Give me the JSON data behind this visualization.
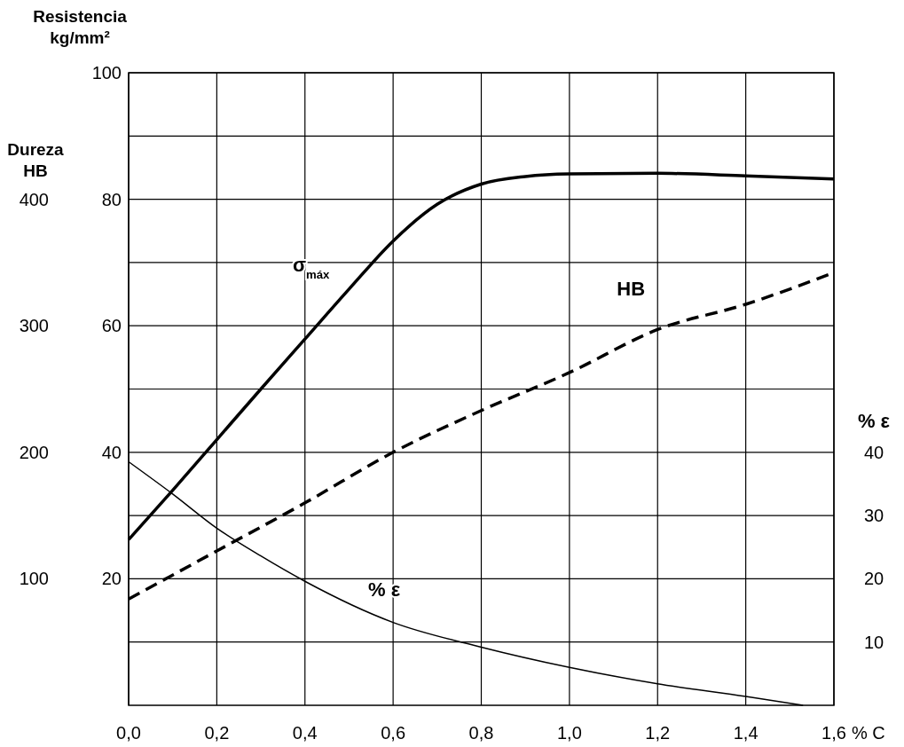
{
  "chart_data": {
    "type": "line",
    "xlabel": "% C",
    "ylabel": "Resistencia kg/mm²",
    "y3label": "Dureza HB",
    "y2label": "% ε",
    "xlim": [
      0,
      1.6
    ],
    "xticks": [
      {
        "value": 0,
        "label": "0,0"
      },
      {
        "value": 0.2,
        "label": "0,2"
      },
      {
        "value": 0.4,
        "label": "0,4"
      },
      {
        "value": 0.6,
        "label": "0,6"
      },
      {
        "value": 0.8,
        "label": "0,8"
      },
      {
        "value": 1.0,
        "label": "1,0"
      },
      {
        "value": 1.2,
        "label": "1,2"
      },
      {
        "value": 1.4,
        "label": "1,4"
      },
      {
        "value": 1.6,
        "label": "1,6"
      }
    ],
    "ylim": [
      0,
      100
    ],
    "yticks": [
      {
        "value": 10,
        "label": null
      },
      20,
      {
        "value": 30,
        "label": null
      },
      40,
      {
        "value": 50,
        "label": null
      },
      60,
      {
        "value": 70,
        "label": null
      },
      80,
      {
        "value": 90,
        "label": null
      },
      100
    ],
    "y3lim": [
      0,
      500
    ],
    "y3ticks": [
      100,
      200,
      300,
      400
    ],
    "y2lim": [
      0,
      100
    ],
    "y2ticks": [
      10,
      20,
      30,
      40
    ],
    "grid": true,
    "series": [
      {
        "name": "σ$_{máx}$",
        "color": "#000000",
        "line_style": "solid",
        "x": [
          0,
          0.1,
          0.2,
          0.3,
          0.4,
          0.5,
          0.6,
          0.7,
          0.8,
          0.9,
          1.0,
          1.2,
          1.4,
          1.6
        ],
        "values": [
          26.2,
          34,
          42,
          50,
          57.9,
          65.8,
          73.4,
          79.2,
          82.4,
          83.6,
          84.0,
          84.1,
          83.7,
          83.2
        ]
      },
      {
        "name": "HB",
        "color": "#000000",
        "line_style": "dashed",
        "axis": "y3",
        "x": [
          0,
          0.2,
          0.4,
          0.6,
          0.8,
          1.0,
          1.2,
          1.4,
          1.6
        ],
        "values": [
          84,
          122,
          160,
          200,
          233,
          263,
          297,
          317,
          342
        ]
      },
      {
        "name": "% ε",
        "color": "#000000",
        "line_style": "solid",
        "axis": "y2",
        "x": [
          0,
          0.1,
          0.2,
          0.3,
          0.4,
          0.6,
          0.8,
          1.0,
          1.2,
          1.4,
          1.53
        ],
        "values": [
          38.5,
          33.4,
          28.0,
          23.6,
          19.6,
          13.1,
          9.2,
          6.0,
          3.4,
          1.4,
          0
        ]
      }
    ]
  }
}
